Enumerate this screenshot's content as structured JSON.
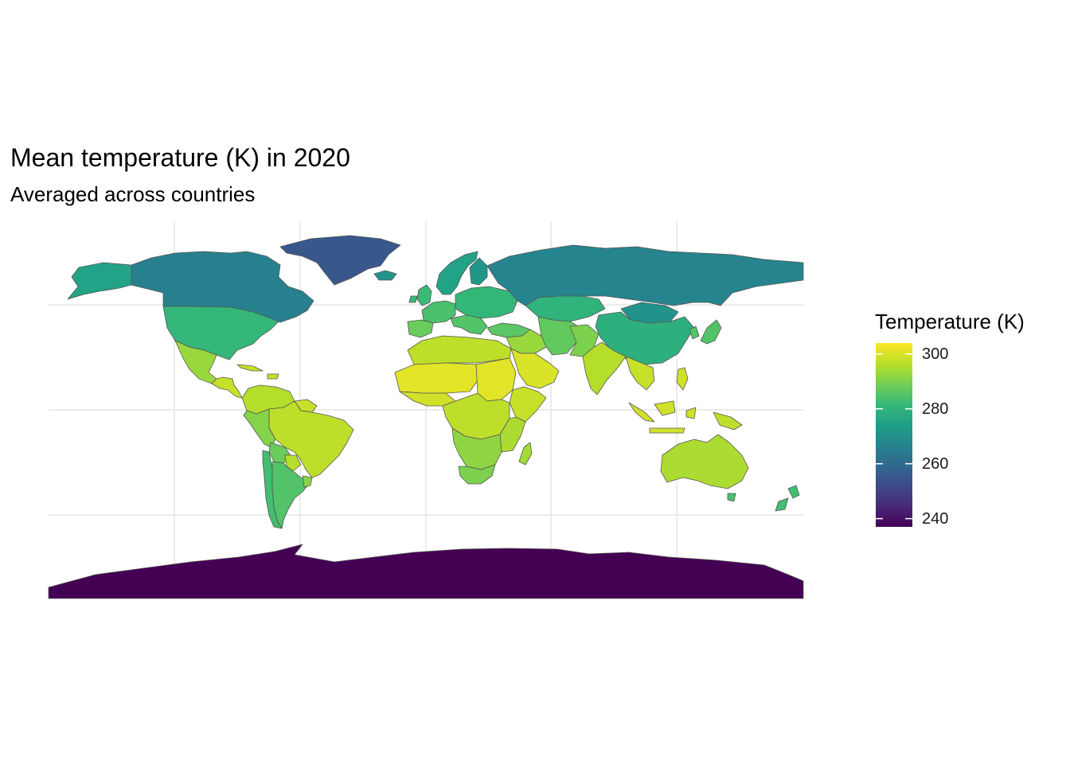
{
  "chart_data": {
    "type": "choropleth",
    "title": "Mean temperature (K) in 2020",
    "subtitle": "Averaged across countries",
    "legend": {
      "title": "Temperature (K)",
      "position": "right",
      "ticks": [
        300,
        280,
        260,
        240
      ],
      "tick_labels": [
        "300",
        "280",
        "260",
        "240"
      ],
      "range": [
        237,
        304
      ],
      "palette": "viridis"
    },
    "grid": true,
    "regions": [
      {
        "name": "Antarctica",
        "value": 237
      },
      {
        "name": "Greenland",
        "value": 255
      },
      {
        "name": "Canada",
        "value": 266
      },
      {
        "name": "Alaska",
        "value": 275
      },
      {
        "name": "United States",
        "value": 281
      },
      {
        "name": "Mexico",
        "value": 293
      },
      {
        "name": "Central America",
        "value": 298
      },
      {
        "name": "Caribbean",
        "value": 298
      },
      {
        "name": "Colombia & Venezuela",
        "value": 296
      },
      {
        "name": "Guianas",
        "value": 298
      },
      {
        "name": "Brazil",
        "value": 297
      },
      {
        "name": "Peru & Ecuador",
        "value": 291
      },
      {
        "name": "Bolivia",
        "value": 288
      },
      {
        "name": "Paraguay",
        "value": 296
      },
      {
        "name": "Chile",
        "value": 283
      },
      {
        "name": "Argentina",
        "value": 285
      },
      {
        "name": "Uruguay",
        "value": 291
      },
      {
        "name": "Iceland",
        "value": 271
      },
      {
        "name": "Scandinavia",
        "value": 275
      },
      {
        "name": "Finland",
        "value": 272
      },
      {
        "name": "United Kingdom & Ireland",
        "value": 282
      },
      {
        "name": "Western Europe",
        "value": 284
      },
      {
        "name": "Iberia",
        "value": 288
      },
      {
        "name": "Central & Eastern Europe",
        "value": 281
      },
      {
        "name": "Italy & Balkans",
        "value": 285
      },
      {
        "name": "Russia",
        "value": 267
      },
      {
        "name": "Kazakhstan",
        "value": 280
      },
      {
        "name": "Mongolia",
        "value": 271
      },
      {
        "name": "China",
        "value": 279
      },
      {
        "name": "Japan & Korea",
        "value": 285
      },
      {
        "name": "Turkey",
        "value": 286
      },
      {
        "name": "Middle East",
        "value": 293
      },
      {
        "name": "Arabian Peninsula",
        "value": 300
      },
      {
        "name": "Iran & Central Asia",
        "value": 287
      },
      {
        "name": "Afghanistan & Pakistan",
        "value": 290
      },
      {
        "name": "India",
        "value": 296
      },
      {
        "name": "Southeast Asia",
        "value": 298
      },
      {
        "name": "Indonesia",
        "value": 299
      },
      {
        "name": "Philippines",
        "value": 299
      },
      {
        "name": "New Guinea",
        "value": 297
      },
      {
        "name": "North Africa",
        "value": 297
      },
      {
        "name": "Sahel",
        "value": 301
      },
      {
        "name": "West Africa Coast",
        "value": 299
      },
      {
        "name": "Sudan & Chad",
        "value": 301
      },
      {
        "name": "Horn of Africa",
        "value": 298
      },
      {
        "name": "Central Africa",
        "value": 297
      },
      {
        "name": "East Africa",
        "value": 295
      },
      {
        "name": "Southern Africa",
        "value": 292
      },
      {
        "name": "South Africa",
        "value": 290
      },
      {
        "name": "Madagascar",
        "value": 294
      },
      {
        "name": "Australia",
        "value": 295
      },
      {
        "name": "Tasmania",
        "value": 284
      },
      {
        "name": "New Zealand",
        "value": 283
      }
    ]
  }
}
